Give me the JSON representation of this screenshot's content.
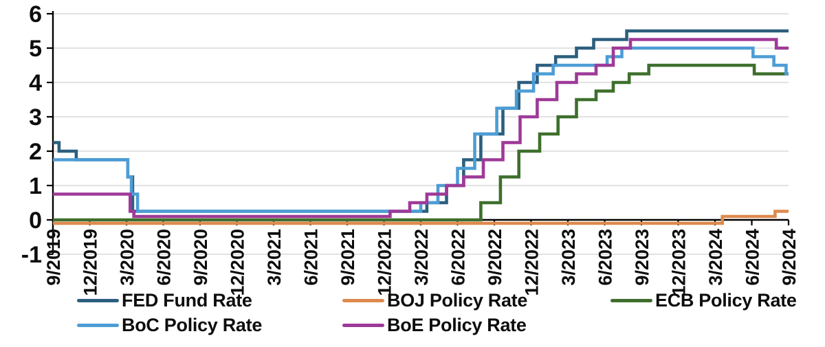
{
  "figure": {
    "background": "#ffffff",
    "text_color": "#0d0d0d"
  },
  "chart_data": {
    "type": "line",
    "title": "",
    "line_style": "step-after",
    "x_tick_labels": [
      "9/2019",
      "12/2019",
      "3/2020",
      "6/2020",
      "9/2020",
      "12/2020",
      "3/2021",
      "6/2021",
      "9/2021",
      "12/2021",
      "3/2022",
      "6/2022",
      "9/2022",
      "12/2022",
      "3/2023",
      "6/2023",
      "9/2023",
      "12/2023",
      "3/2024",
      "6/2024",
      "9/2024"
    ],
    "x_total_months": 60,
    "x_tick_interval_months": 3,
    "ylim": [
      -1,
      6
    ],
    "y_ticks": [
      -1,
      0,
      1,
      2,
      3,
      4,
      5,
      6
    ],
    "grid": "horizontal",
    "grid_color": "#d8d8d8",
    "axis_color": "#000000",
    "legend_position": "bottom",
    "legend_columns": 3,
    "series": [
      {
        "name": "FED Fund Rate",
        "color": "#2c5f7e",
        "step_points": [
          [
            0,
            2.25
          ],
          [
            0.5,
            2.0
          ],
          [
            1.9,
            1.75
          ],
          [
            6.1,
            1.25
          ],
          [
            6.5,
            0.25
          ],
          [
            30.5,
            0.5
          ],
          [
            32.1,
            1.0
          ],
          [
            33.5,
            1.75
          ],
          [
            34.9,
            2.5
          ],
          [
            36.7,
            3.25
          ],
          [
            38.0,
            4.0
          ],
          [
            39.5,
            4.5
          ],
          [
            41.0,
            4.75
          ],
          [
            42.7,
            5.0
          ],
          [
            44.1,
            5.25
          ],
          [
            46.8,
            5.5
          ]
        ]
      },
      {
        "name": "BOJ Policy Rate",
        "color": "#dd8a4e",
        "step_points": [
          [
            0,
            -0.1
          ],
          [
            54.6,
            0.1
          ],
          [
            58.9,
            0.25
          ]
        ]
      },
      {
        "name": "ECB Policy Rate",
        "color": "#3e6f2d",
        "step_points": [
          [
            0,
            0.0
          ],
          [
            34.9,
            0.5
          ],
          [
            36.5,
            1.25
          ],
          [
            38.0,
            2.0
          ],
          [
            39.7,
            2.5
          ],
          [
            41.2,
            3.0
          ],
          [
            42.7,
            3.5
          ],
          [
            44.3,
            3.75
          ],
          [
            45.7,
            4.0
          ],
          [
            47.0,
            4.25
          ],
          [
            48.6,
            4.5
          ],
          [
            57.2,
            4.25
          ]
        ]
      },
      {
        "name": "BoC Policy Rate",
        "color": "#4d9dd5",
        "step_points": [
          [
            0,
            1.75
          ],
          [
            6.1,
            1.25
          ],
          [
            6.4,
            0.75
          ],
          [
            6.9,
            0.25
          ],
          [
            30.0,
            0.5
          ],
          [
            31.4,
            1.0
          ],
          [
            33.0,
            1.5
          ],
          [
            34.4,
            2.5
          ],
          [
            36.2,
            3.25
          ],
          [
            37.8,
            3.75
          ],
          [
            39.2,
            4.25
          ],
          [
            40.8,
            4.5
          ],
          [
            45.2,
            4.75
          ],
          [
            46.4,
            5.0
          ],
          [
            57.1,
            4.75
          ],
          [
            58.8,
            4.5
          ],
          [
            59.8,
            4.25
          ]
        ]
      },
      {
        "name": "BoE Policy Rate",
        "color": "#9e3a98",
        "step_points": [
          [
            0,
            0.75
          ],
          [
            6.3,
            0.25
          ],
          [
            6.6,
            0.1
          ],
          [
            27.5,
            0.25
          ],
          [
            29.1,
            0.5
          ],
          [
            30.5,
            0.75
          ],
          [
            32.1,
            1.0
          ],
          [
            33.5,
            1.25
          ],
          [
            35.1,
            1.75
          ],
          [
            36.7,
            2.25
          ],
          [
            38.1,
            3.0
          ],
          [
            39.5,
            3.5
          ],
          [
            41.1,
            4.0
          ],
          [
            42.7,
            4.25
          ],
          [
            44.3,
            4.5
          ],
          [
            45.7,
            5.0
          ],
          [
            47.1,
            5.25
          ],
          [
            59.0,
            5.0
          ]
        ]
      }
    ]
  }
}
